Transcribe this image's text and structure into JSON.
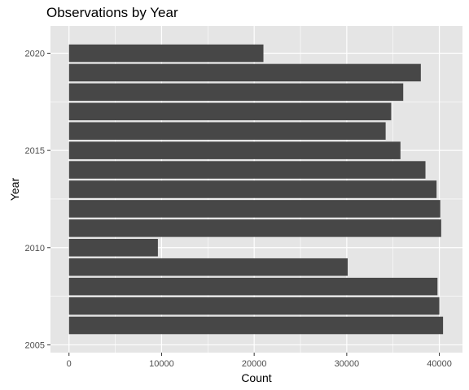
{
  "chart_data": {
    "type": "bar",
    "orientation": "horizontal",
    "title": "Observations by Year",
    "xlabel": "Count",
    "ylabel": "Year",
    "xlim": [
      -2000,
      42500
    ],
    "ylim": [
      2004.6,
      2021.4
    ],
    "x_ticks": [
      0,
      10000,
      20000,
      30000,
      40000
    ],
    "y_ticks": [
      2005,
      2010,
      2015,
      2020
    ],
    "categories": [
      2006,
      2007,
      2008,
      2009,
      2010,
      2011,
      2012,
      2013,
      2014,
      2015,
      2016,
      2017,
      2018,
      2019,
      2020
    ],
    "values": [
      40400,
      40000,
      39800,
      30100,
      9600,
      40200,
      40100,
      39700,
      38500,
      35800,
      34200,
      34800,
      36100,
      38000,
      21000
    ],
    "bar_color": "#474747",
    "panel_color": "#e5e5e5",
    "grid_color": "#ffffff",
    "legend": "none"
  }
}
